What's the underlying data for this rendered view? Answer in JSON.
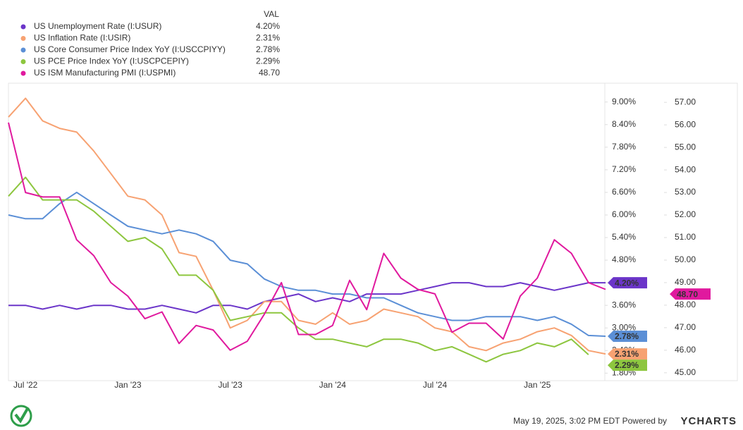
{
  "chart_data": {
    "type": "line",
    "legend_header": "VAL",
    "categories": [
      null,
      "Jul '22",
      null,
      null,
      null,
      null,
      null,
      "Jan '23",
      null,
      null,
      null,
      null,
      null,
      "Jul '23",
      null,
      null,
      null,
      null,
      null,
      "Jan '24",
      null,
      null,
      null,
      null,
      null,
      "Jul '24",
      null,
      null,
      null,
      null,
      null,
      "Jan '25",
      null,
      null,
      null,
      null
    ],
    "series": [
      {
        "name": "US Unemployment Rate (I:USUR)",
        "color": "#6b35c9",
        "latest": "4.20%",
        "values": [
          3.6,
          3.6,
          3.5,
          3.6,
          3.5,
          3.6,
          3.6,
          3.5,
          3.5,
          3.6,
          3.5,
          3.4,
          3.6,
          3.6,
          3.5,
          3.7,
          3.8,
          3.9,
          3.7,
          3.8,
          3.7,
          3.9,
          3.9,
          3.9,
          4.0,
          4.1,
          4.2,
          4.2,
          4.1,
          4.1,
          4.2,
          4.1,
          4.0,
          4.1,
          4.2,
          4.2
        ]
      },
      {
        "name": "US Inflation Rate (I:USIR)",
        "color": "#f7a272",
        "latest": "2.31%",
        "values": [
          8.6,
          9.1,
          8.5,
          8.3,
          8.2,
          7.7,
          7.1,
          6.5,
          6.4,
          6.0,
          5.0,
          4.9,
          4.0,
          3.0,
          3.2,
          3.7,
          3.7,
          3.2,
          3.1,
          3.4,
          3.1,
          3.2,
          3.5,
          3.4,
          3.3,
          3.0,
          2.9,
          2.5,
          2.4,
          2.6,
          2.7,
          2.9,
          3.0,
          2.8,
          2.4,
          2.31
        ]
      },
      {
        "name": "US Core Consumer Price Index YoY (I:USCCPIYY)",
        "color": "#5b8fd6",
        "latest": "2.78%",
        "values": [
          6.0,
          5.9,
          5.9,
          6.3,
          6.6,
          6.3,
          6.0,
          5.7,
          5.6,
          5.5,
          5.6,
          5.5,
          5.3,
          4.8,
          4.7,
          4.3,
          4.1,
          4.0,
          4.0,
          3.9,
          3.9,
          3.8,
          3.8,
          3.6,
          3.4,
          3.3,
          3.2,
          3.2,
          3.3,
          3.3,
          3.3,
          3.2,
          3.3,
          3.1,
          2.8,
          2.78
        ]
      },
      {
        "name": "US PCE Price Index YoY (I:USCPCEPIY)",
        "color": "#8dc63f",
        "latest": "2.29%",
        "values": [
          6.5,
          7.0,
          6.4,
          6.4,
          6.4,
          6.1,
          5.7,
          5.3,
          5.4,
          5.1,
          4.4,
          4.4,
          4.0,
          3.2,
          3.3,
          3.4,
          3.4,
          3.0,
          2.7,
          2.7,
          2.6,
          2.5,
          2.7,
          2.7,
          2.6,
          2.4,
          2.5,
          2.3,
          2.1,
          2.3,
          2.4,
          2.6,
          2.5,
          2.7,
          2.29,
          null
        ]
      },
      {
        "name": "US ISM Manufacturing PMI (I:USPMI)",
        "color": "#e0199e",
        "latest": "48.70",
        "axis": "y2",
        "values": [
          56.1,
          53.0,
          52.8,
          52.8,
          50.9,
          50.2,
          49.0,
          48.4,
          47.4,
          47.7,
          46.3,
          47.1,
          46.9,
          46.0,
          46.4,
          47.6,
          49.0,
          46.7,
          46.7,
          47.1,
          49.1,
          47.8,
          50.3,
          49.2,
          48.7,
          48.5,
          46.8,
          47.2,
          47.2,
          46.5,
          48.4,
          49.2,
          50.9,
          50.3,
          49.0,
          48.7
        ]
      }
    ],
    "ylim": [
      1.6,
      9.5
    ],
    "yticks": [
      {
        "value": 1.8,
        "label": "1.80%"
      },
      {
        "value": 2.4,
        "label": "2.40%"
      },
      {
        "value": 3.0,
        "label": "3.00%"
      },
      {
        "value": 3.6,
        "label": "3.60%"
      },
      {
        "value": 4.2,
        "label": "4.20%"
      },
      {
        "value": 4.8,
        "label": "4.80%"
      },
      {
        "value": 5.4,
        "label": "5.40%"
      },
      {
        "value": 6.0,
        "label": "6.00%"
      },
      {
        "value": 6.6,
        "label": "6.60%"
      },
      {
        "value": 7.2,
        "label": "7.20%"
      },
      {
        "value": 7.8,
        "label": "7.80%"
      },
      {
        "value": 8.4,
        "label": "8.40%"
      },
      {
        "value": 9.0,
        "label": "9.00%"
      }
    ],
    "y2lim": [
      44.65,
      57.85
    ],
    "y2ticks": [
      {
        "value": 45,
        "label": "45.00"
      },
      {
        "value": 46,
        "label": "46.00"
      },
      {
        "value": 47,
        "label": "47.00"
      },
      {
        "value": 48,
        "label": "48.00"
      },
      {
        "value": 49,
        "label": "49.00"
      },
      {
        "value": 50,
        "label": "50.00"
      },
      {
        "value": 51,
        "label": "51.00"
      },
      {
        "value": 52,
        "label": "52.00"
      },
      {
        "value": 53,
        "label": "53.00"
      },
      {
        "value": 54,
        "label": "54.00"
      },
      {
        "value": 55,
        "label": "55.00"
      },
      {
        "value": 56,
        "label": "56.00"
      },
      {
        "value": 57,
        "label": "57.00"
      }
    ],
    "footer": "May 19, 2025, 3:02 PM EDT Powered by",
    "brand": "YCHARTS"
  }
}
